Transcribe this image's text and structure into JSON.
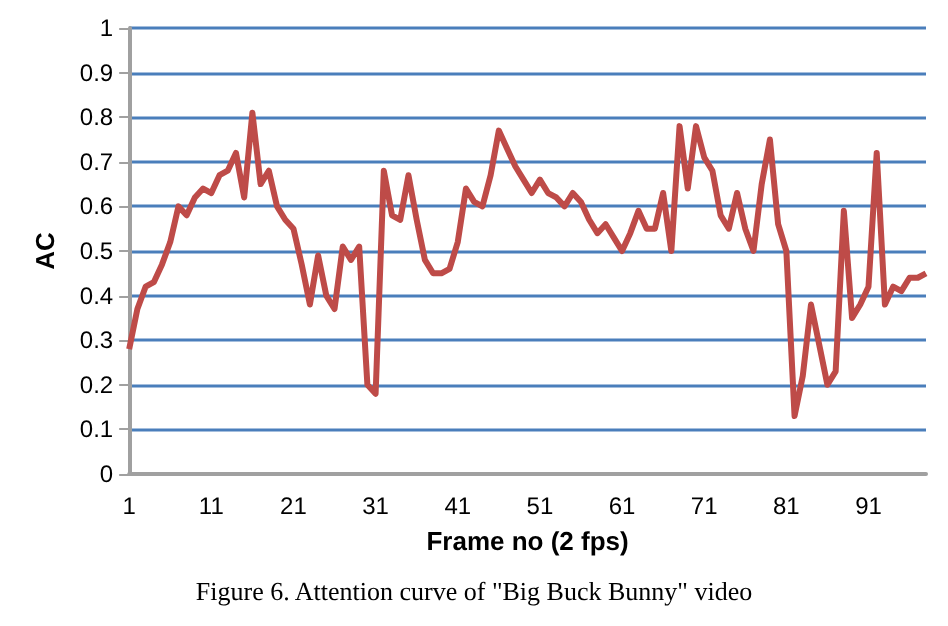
{
  "chart_data": {
    "type": "line",
    "xlabel": "Frame no (2 fps)",
    "ylabel": "AC",
    "annotations": [
      "Figure 6. Attention curve of \"Big Buck Bunny\" video"
    ],
    "categories": [
      "1",
      null,
      null,
      null,
      null,
      null,
      null,
      null,
      null,
      null,
      "11",
      null,
      null,
      null,
      null,
      null,
      null,
      null,
      null,
      null,
      "21",
      null,
      null,
      null,
      null,
      null,
      null,
      null,
      null,
      null,
      "31",
      null,
      null,
      null,
      null,
      null,
      null,
      null,
      null,
      null,
      "41",
      null,
      null,
      null,
      null,
      null,
      null,
      null,
      null,
      null,
      "51",
      null,
      null,
      null,
      null,
      null,
      null,
      null,
      null,
      null,
      "61",
      null,
      null,
      null,
      null,
      null,
      null,
      null,
      null,
      null,
      "71",
      null,
      null,
      null,
      null,
      null,
      null,
      null,
      null,
      null,
      "81",
      null,
      null,
      null,
      null,
      null,
      null,
      null,
      null,
      null,
      "91",
      null,
      null,
      null,
      null,
      null,
      null,
      null
    ],
    "series": [
      {
        "color": "#be4b48",
        "values": [
          0.28,
          0.37,
          0.42,
          0.43,
          0.47,
          0.52,
          0.6,
          0.58,
          0.62,
          0.64,
          0.63,
          0.67,
          0.68,
          0.72,
          0.62,
          0.81,
          0.65,
          0.68,
          0.6,
          0.57,
          0.55,
          0.47,
          0.38,
          0.49,
          0.4,
          0.37,
          0.51,
          0.48,
          0.51,
          0.2,
          0.18,
          0.68,
          0.58,
          0.57,
          0.67,
          0.57,
          0.48,
          0.45,
          0.45,
          0.46,
          0.52,
          0.64,
          0.61,
          0.6,
          0.67,
          0.77,
          0.73,
          0.69,
          0.66,
          0.63,
          0.66,
          0.63,
          0.62,
          0.6,
          0.63,
          0.61,
          0.57,
          0.54,
          0.56,
          0.53,
          0.5,
          0.54,
          0.59,
          0.55,
          0.55,
          0.63,
          0.5,
          0.78,
          0.64,
          0.78,
          0.71,
          0.68,
          0.58,
          0.55,
          0.63,
          0.55,
          0.5,
          0.65,
          0.75,
          0.56,
          0.5,
          0.13,
          0.22,
          0.38,
          0.29,
          0.2,
          0.23,
          0.59,
          0.35,
          0.38,
          0.42,
          0.72,
          0.38,
          0.42,
          0.41,
          0.44,
          0.44,
          0.45
        ]
      }
    ],
    "ylim": [
      0,
      1
    ],
    "yticks": [
      0,
      0.1,
      0.2,
      0.3,
      0.4,
      0.5,
      0.6,
      0.7,
      0.8,
      0.9,
      1
    ],
    "grid": "y",
    "marker": "none",
    "line_style": "solid"
  }
}
